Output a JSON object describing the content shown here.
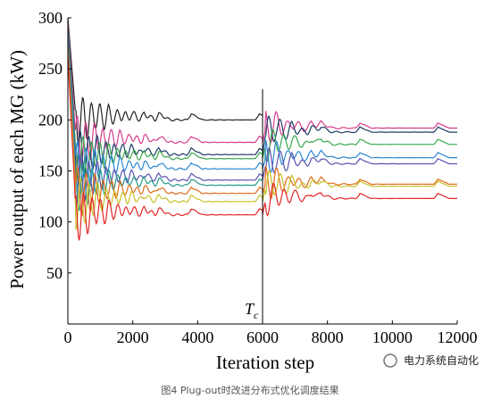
{
  "chart_data": {
    "type": "line",
    "xlabel": "Iteration step",
    "ylabel": "Power output of each MG (kW)",
    "xlim": [
      0,
      12000
    ],
    "ylim": [
      0,
      300
    ],
    "xticks": [
      "0",
      "2000",
      "4000",
      "6000",
      "8000",
      "10000",
      "12000"
    ],
    "yticks": [
      "50",
      "100",
      "150",
      "200",
      "250",
      "300"
    ],
    "annotations": [
      {
        "text": "T",
        "subscript": "c",
        "x": 6000
      }
    ],
    "event_x": 6000,
    "grid": false,
    "legend": "none",
    "series": [
      {
        "color": "#222222",
        "values_before": 200,
        "values_after": null
      },
      {
        "color": "#d63d8e",
        "values_before": 178,
        "values_after": 192
      },
      {
        "color": "#1e3a66",
        "values_before": 166,
        "values_after": 188
      },
      {
        "color": "#39a84d",
        "values_before": 162,
        "values_after": 176
      },
      {
        "color": "#2a86d1",
        "values_before": 152,
        "values_after": 163
      },
      {
        "color": "#5a53b0",
        "values_before": 141,
        "values_after": 157
      },
      {
        "color": "#1f9b8a",
        "values_before": 136,
        "values_after": null
      },
      {
        "color": "#e06a1a",
        "values_before": 128,
        "values_after": 137
      },
      {
        "color": "#c8c22a",
        "values_before": 120,
        "values_after": 135
      },
      {
        "color": "#e32626",
        "values_before": 107,
        "values_after": 123
      }
    ]
  },
  "caption": "图4 Plug-out时改进分布式优化调度结果",
  "watermark": "电力系统自动化"
}
